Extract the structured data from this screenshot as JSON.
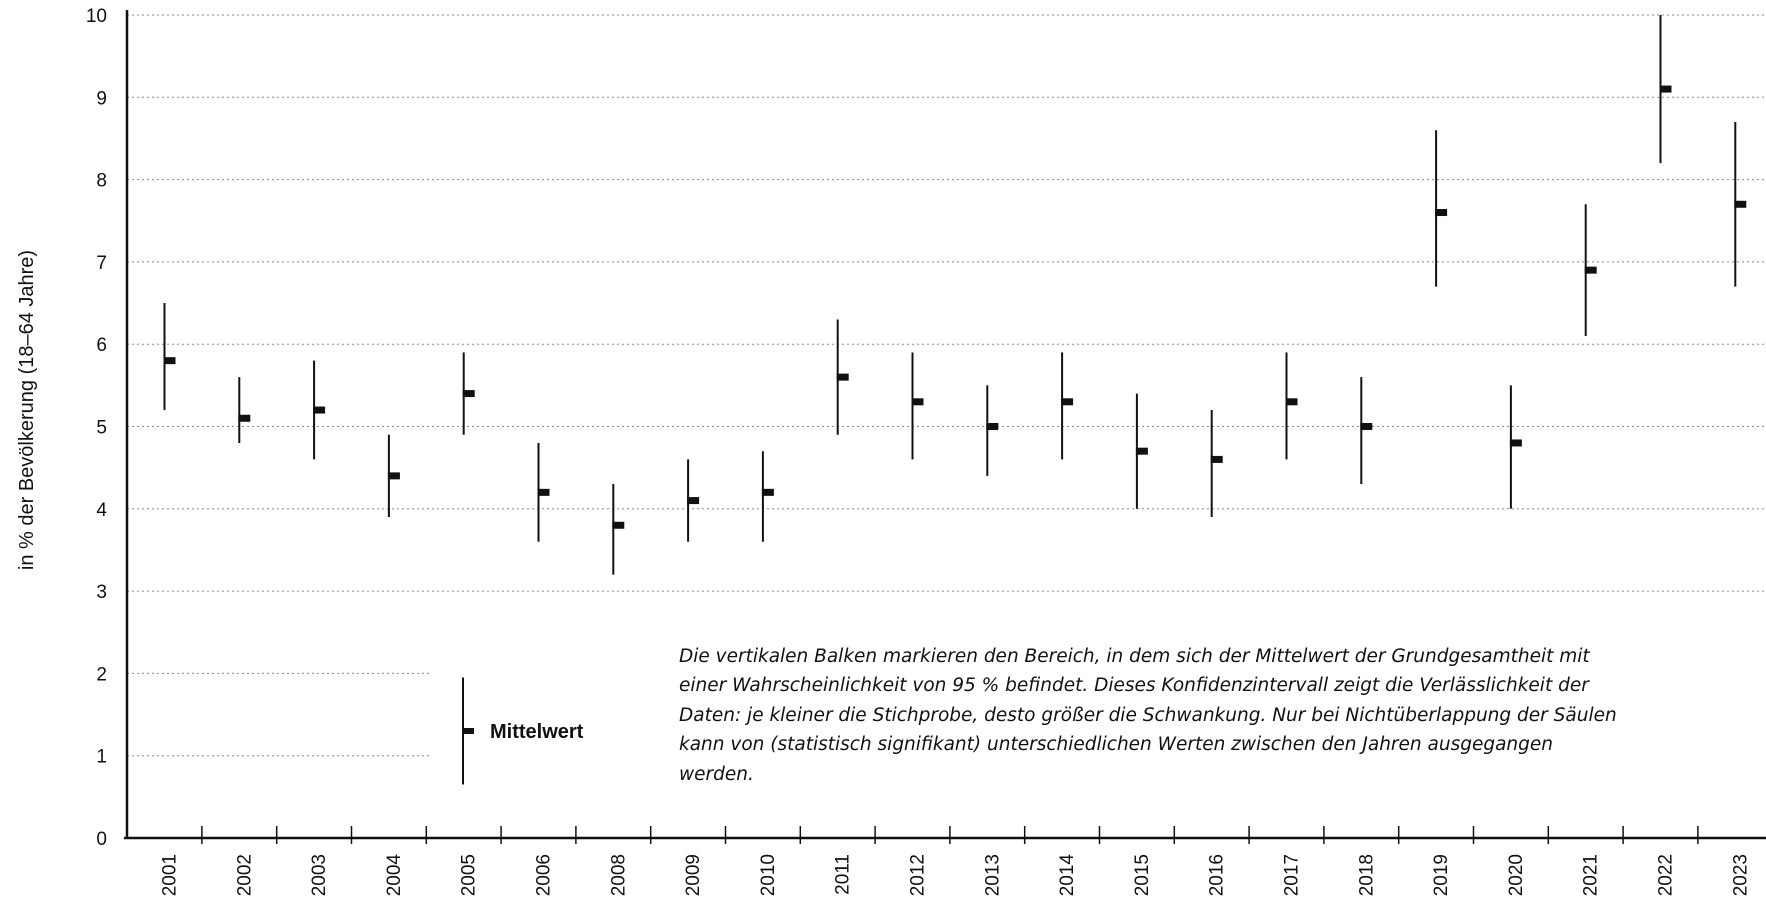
{
  "chart_data": {
    "type": "errorbar",
    "ylabel": "in % der Bevölkerung (18–64 Jahre)",
    "ylim": [
      0,
      10
    ],
    "yticks": [
      0,
      1,
      2,
      3,
      4,
      5,
      6,
      7,
      8,
      9,
      10
    ],
    "grid": "horizontal dotted",
    "categories": [
      "2001",
      "2002",
      "2003",
      "2004",
      "2005",
      "2006",
      "2008",
      "2009",
      "2010",
      "2011",
      "2012",
      "2013",
      "2014",
      "2015",
      "2016",
      "2017",
      "2018",
      "2019",
      "2020",
      "2021",
      "2022",
      "2023"
    ],
    "series": [
      {
        "mean": [
          5.8,
          5.1,
          5.2,
          4.4,
          5.4,
          4.2,
          3.8,
          4.1,
          4.2,
          5.6,
          5.3,
          5.0,
          5.3,
          4.7,
          4.6,
          5.3,
          5.0,
          7.6,
          4.8,
          6.9,
          9.1,
          7.7
        ],
        "lower": [
          5.2,
          4.8,
          4.6,
          3.9,
          4.9,
          3.6,
          3.2,
          3.6,
          3.6,
          4.9,
          4.6,
          4.4,
          4.6,
          4.0,
          3.9,
          4.6,
          4.3,
          6.7,
          4.0,
          6.1,
          8.2,
          6.7
        ],
        "upper": [
          6.5,
          5.6,
          5.8,
          4.9,
          5.9,
          4.8,
          4.3,
          4.6,
          4.7,
          6.3,
          5.9,
          5.5,
          5.9,
          5.4,
          5.2,
          5.9,
          5.6,
          8.6,
          5.5,
          7.7,
          10.0,
          8.7
        ]
      }
    ],
    "legend": {
      "label": "Mittelwert",
      "placement": "bottom-left"
    },
    "note": "Die vertikalen Balken markieren den Bereich, in dem sich der Mittelwert der Grundgesamtheit mit einer Wahrscheinlichkeit von 95 % befindet. Dieses Konfidenzintervall zeigt die Verlässlichkeit der Daten: je kleiner die Stichprobe, desto größer die Schwankung. Nur bei Nichtüberlappung der Säulen kann von (statistisch signifikant) unterschiedlichen Werten zwischen den Jahren ausgegangen werden."
  }
}
